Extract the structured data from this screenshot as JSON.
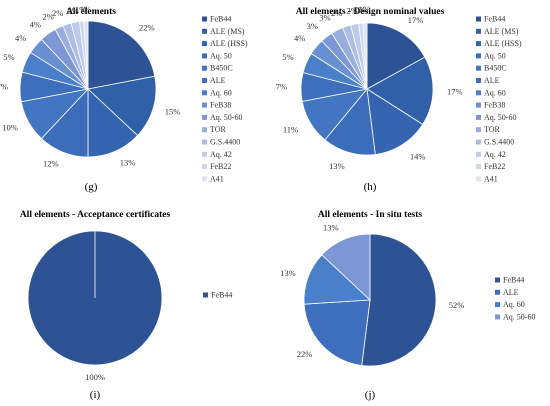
{
  "colors": {
    "FeB44": "#2E5394",
    "ALE (MS)": "#3060A8",
    "ALE (HSS)": "#3565B0",
    "Aq. 50": "#3B6DBA",
    "B450C": "#4276C2",
    "ALE": "#3E6FBE",
    "Aq. 60": "#4A7FC9",
    "FeB38": "#6A90D2",
    "Aq. 50-60": "#7D96D6",
    "TOR": "#9AAEDD",
    "G.S.4400": "#AEBDE4",
    "Aq. 42": "#BFCBEA",
    "FeB22": "#CDD6EE",
    "A41": "#DEE4F3"
  },
  "chart_data": [
    {
      "panel": "g",
      "type": "pie",
      "title": "All elements",
      "caption": "(g)",
      "categories": [
        "FeB44",
        "ALE (MS)",
        "ALE (HSS)",
        "Aq. 50",
        "B450C",
        "ALE",
        "Aq. 60",
        "FeB38",
        "Aq. 50-60",
        "TOR",
        "G.S.4400",
        "Aq. 42",
        "FeB22",
        "A41"
      ],
      "values": [
        22,
        15,
        13,
        12,
        10,
        7,
        5,
        4,
        4,
        2,
        2,
        2,
        1,
        1
      ],
      "labels": [
        "22%",
        "15%",
        "13%",
        "12%",
        "10%",
        "7%",
        "5%",
        "4%",
        "4%",
        "2%",
        "2%",
        "2%",
        "1%",
        "1%"
      ],
      "legend": [
        "FeB44",
        "ALE (MS)",
        "ALE (HSS)",
        "Aq. 50",
        "B450C",
        "ALE",
        "Aq. 60",
        "FeB38",
        "Aq. 50-60",
        "TOR",
        "G.S.4400",
        "Aq. 42",
        "FeB22",
        "A41"
      ]
    },
    {
      "panel": "h",
      "type": "pie",
      "title": "All elements - Design nominal values",
      "caption": "(h)",
      "categories": [
        "FeB44",
        "ALE (MS)",
        "ALE (HSS)",
        "Aq. 50",
        "B450C",
        "ALE",
        "Aq. 60",
        "FeB38",
        "Aq. 50-60",
        "TOR",
        "G.S.4400",
        "Aq. 42",
        "FeB22",
        "A41"
      ],
      "values": [
        17,
        17,
        14,
        13,
        11,
        7,
        5,
        4,
        3,
        3,
        2,
        2,
        1,
        1
      ],
      "labels": [
        "17%",
        "17%",
        "14%",
        "13%",
        "11%",
        "7%",
        "5%",
        "4%",
        "3%",
        "3%",
        "2%",
        "2%",
        "1%",
        "1%"
      ],
      "legend": [
        "FeB44",
        "ALE (MS)",
        "ALE (HSS)",
        "Aq. 50",
        "B450C",
        "ALE",
        "Aq. 60",
        "FeB38",
        "Aq. 50-60",
        "TOR",
        "G.S.4400",
        "Aq. 42",
        "FeB22",
        "A41"
      ]
    },
    {
      "panel": "i",
      "type": "pie",
      "title": "All elements - Acceptance certificates",
      "caption": "(i)",
      "categories": [
        "FeB44"
      ],
      "values": [
        100
      ],
      "labels": [
        "100%"
      ],
      "legend": [
        "FeB44"
      ]
    },
    {
      "panel": "j",
      "type": "pie",
      "title": "All elements - In situ tests",
      "caption": "(j)",
      "categories": [
        "FeB44",
        "ALE",
        "Aq. 60",
        "Aq. 50-60"
      ],
      "values": [
        52,
        22,
        13,
        13
      ],
      "labels": [
        "52%",
        "22%",
        "13%",
        "13%"
      ],
      "legend": [
        "FeB44",
        "ALE",
        "Aq. 60",
        "Aq. 50-60"
      ]
    }
  ]
}
